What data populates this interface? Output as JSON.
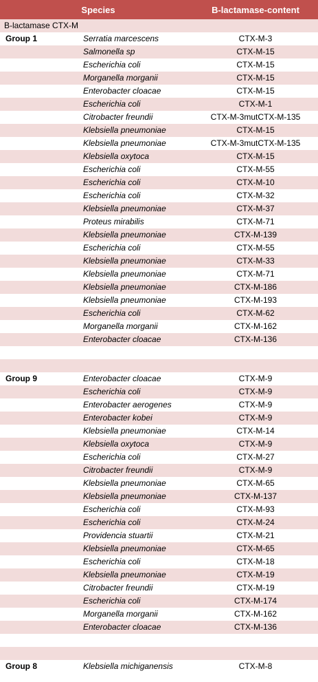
{
  "header": {
    "species": "Species",
    "content": "B-lactamase-content"
  },
  "subtitle": "B-lactamase CTX-M",
  "groups": [
    {
      "label": "Group 1",
      "rows": [
        {
          "species": "Serratia marcescens",
          "content": "CTX-M-3"
        },
        {
          "species": "Salmonella sp",
          "content": "CTX-M-15"
        },
        {
          "species": "Escherichia coli",
          "content": "CTX-M-15"
        },
        {
          "species": "Morganella morganii",
          "content": "CTX-M-15"
        },
        {
          "species": "Enterobacter cloacae",
          "content": "CTX-M-15"
        },
        {
          "species": "Escherichia coli",
          "content": "CTX-M-1"
        },
        {
          "species": "Citrobacter freundii",
          "content": "CTX-M-3mutCTX-M-135"
        },
        {
          "species": "Klebsiella pneumoniae",
          "content": "CTX-M-15"
        },
        {
          "species": "Klebsiella pneumoniae",
          "content": "CTX-M-3mutCTX-M-135"
        },
        {
          "species": "Klebsiella oxytoca",
          "content": "CTX-M-15"
        },
        {
          "species": "Escherichia coli",
          "content": "CTX-M-55"
        },
        {
          "species": "Escherichia coli",
          "content": "CTX-M-10"
        },
        {
          "species": "Escherichia coli",
          "content": "CTX-M-32"
        },
        {
          "species": "Klebsiella pneumoniae",
          "content": "CTX-M-37"
        },
        {
          "species": "Proteus mirabilis",
          "content": "CTX-M-71"
        },
        {
          "species": "Klebsiella pneumoniae",
          "content": "CTX-M-139"
        },
        {
          "species": "Escherichia coli",
          "content": "CTX-M-55"
        },
        {
          "species": "Klebsiella pneumoniae",
          "content": "CTX-M-33"
        },
        {
          "species": "Klebsiella pneumoniae",
          "content": "CTX-M-71"
        },
        {
          "species": "Klebsiella pneumoniae",
          "content": "CTX-M-186"
        },
        {
          "species": "Klebsiella pneumoniae",
          "content": "CTX-M-193"
        },
        {
          "species": "Escherichia coli",
          "content": "CTX-M-62"
        },
        {
          "species": "Morganella morganii",
          "content": "CTX-M-162"
        },
        {
          "species": "Enterobacter cloacae",
          "content": "CTX-M-136"
        }
      ]
    },
    {
      "label": "Group 9",
      "rows": [
        {
          "species": "Enterobacter cloacae",
          "content": "CTX-M-9"
        },
        {
          "species": "Escherichia coli",
          "content": "CTX-M-9"
        },
        {
          "species": "Enterobacter aerogenes",
          "content": "CTX-M-9"
        },
        {
          "species": "Enterobacter kobei",
          "content": "CTX-M-9"
        },
        {
          "species": "Klebsiella pneumoniae",
          "content": "CTX-M-14"
        },
        {
          "species": "Klebsiella oxytoca",
          "content": "CTX-M-9"
        },
        {
          "species": "Escherichia coli",
          "content": "CTX-M-27"
        },
        {
          "species": "Citrobacter freundii",
          "content": "CTX-M-9"
        },
        {
          "species": "Klebsiella pneumoniae",
          "content": "CTX-M-65"
        },
        {
          "species": "Klebsiella pneumoniae",
          "content": "CTX-M-137"
        },
        {
          "species": "Escherichia coli",
          "content": "CTX-M-93"
        },
        {
          "species": "Escherichia coli",
          "content": "CTX-M-24"
        },
        {
          "species": "Providencia stuartii",
          "content": "CTX-M-21"
        },
        {
          "species": "Klebsiella pneumoniae",
          "content": "CTX-M-65"
        },
        {
          "species": "Escherichia coli",
          "content": "CTX-M-18"
        },
        {
          "species": "Klebsiella pneumoniae",
          "content": "CTX-M-19"
        },
        {
          "species": "Citrobacter freundii",
          "content": "CTX-M-19"
        },
        {
          "species": "Escherichia coli",
          "content": "CTX-M-174"
        },
        {
          "species": "Morganella morganii",
          "content": "CTX-M-162"
        },
        {
          "species": "Enterobacter cloacae",
          "content": "CTX-M-136"
        }
      ]
    },
    {
      "label": "Group 8",
      "rows": [
        {
          "species": "Klebsiella michiganensis",
          "content": "CTX-M-8"
        }
      ]
    }
  ]
}
